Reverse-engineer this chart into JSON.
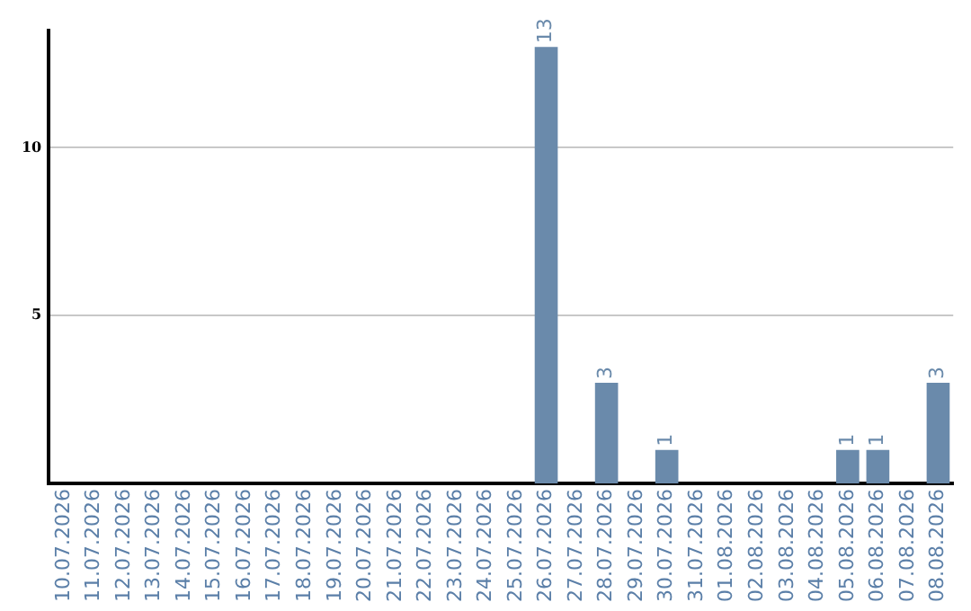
{
  "chart_data": {
    "type": "bar",
    "categories": [
      "10.07.2026",
      "11.07.2026",
      "12.07.2026",
      "13.07.2026",
      "14.07.2026",
      "15.07.2026",
      "16.07.2026",
      "17.07.2026",
      "18.07.2026",
      "19.07.2026",
      "20.07.2026",
      "21.07.2026",
      "22.07.2026",
      "23.07.2026",
      "24.07.2026",
      "25.07.2026",
      "26.07.2026",
      "27.07.2026",
      "28.07.2026",
      "29.07.2026",
      "30.07.2026",
      "31.07.2026",
      "01.08.2026",
      "02.08.2026",
      "03.08.2026",
      "04.08.2026",
      "05.08.2026",
      "06.08.2026",
      "07.08.2026",
      "08.08.2026"
    ],
    "values": [
      0,
      0,
      0,
      0,
      0,
      0,
      0,
      0,
      0,
      0,
      0,
      0,
      0,
      0,
      0,
      0,
      13,
      0,
      3,
      0,
      1,
      0,
      0,
      0,
      0,
      0,
      1,
      1,
      0,
      3
    ],
    "value_labels": [
      null,
      null,
      null,
      null,
      null,
      null,
      null,
      null,
      null,
      null,
      null,
      null,
      null,
      null,
      null,
      null,
      "13",
      null,
      "3",
      null,
      "1",
      null,
      null,
      null,
      null,
      null,
      "1",
      "1",
      null,
      "3"
    ],
    "color": "#6a8aab",
    "ylim": [
      0,
      13.5
    ],
    "yticks": [
      5,
      10
    ],
    "grid": "y",
    "legend": false
  }
}
